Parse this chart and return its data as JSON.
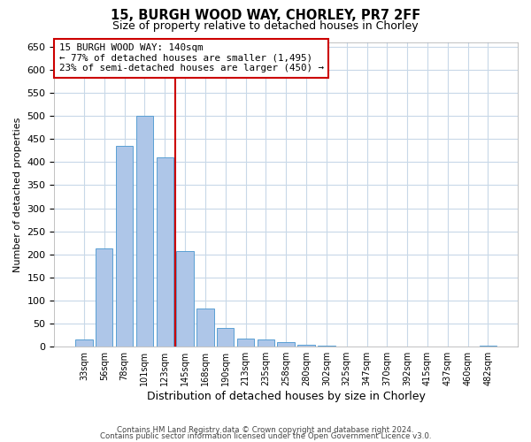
{
  "title1": "15, BURGH WOOD WAY, CHORLEY, PR7 2FF",
  "title2": "Size of property relative to detached houses in Chorley",
  "xlabel": "Distribution of detached houses by size in Chorley",
  "ylabel": "Number of detached properties",
  "bin_labels": [
    "33sqm",
    "56sqm",
    "78sqm",
    "101sqm",
    "123sqm",
    "145sqm",
    "168sqm",
    "190sqm",
    "213sqm",
    "235sqm",
    "258sqm",
    "280sqm",
    "302sqm",
    "325sqm",
    "347sqm",
    "370sqm",
    "392sqm",
    "415sqm",
    "437sqm",
    "460sqm",
    "482sqm"
  ],
  "bar_values": [
    15,
    212,
    435,
    500,
    410,
    208,
    83,
    40,
    18,
    15,
    10,
    5,
    2,
    1,
    1,
    0.5,
    0.5,
    0.5,
    0.5,
    0.5,
    3
  ],
  "bar_color": "#aec6e8",
  "bar_edge_color": "#5a9fd4",
  "marker_value_index": 4.5,
  "marker_color": "#cc0000",
  "annotation_text": "15 BURGH WOOD WAY: 140sqm\n← 77% of detached houses are smaller (1,495)\n23% of semi-detached houses are larger (450) →",
  "annotation_box_color": "#ffffff",
  "annotation_box_edge": "#cc0000",
  "ylim": [
    0,
    660
  ],
  "yticks": [
    0,
    50,
    100,
    150,
    200,
    250,
    300,
    350,
    400,
    450,
    500,
    550,
    600,
    650
  ],
  "footer1": "Contains HM Land Registry data © Crown copyright and database right 2024.",
  "footer2": "Contains public sector information licensed under the Open Government Licence v3.0.",
  "background_color": "#ffffff",
  "grid_color": "#c8d8e8",
  "figsize": [
    6.0,
    5.0
  ],
  "dpi": 100
}
